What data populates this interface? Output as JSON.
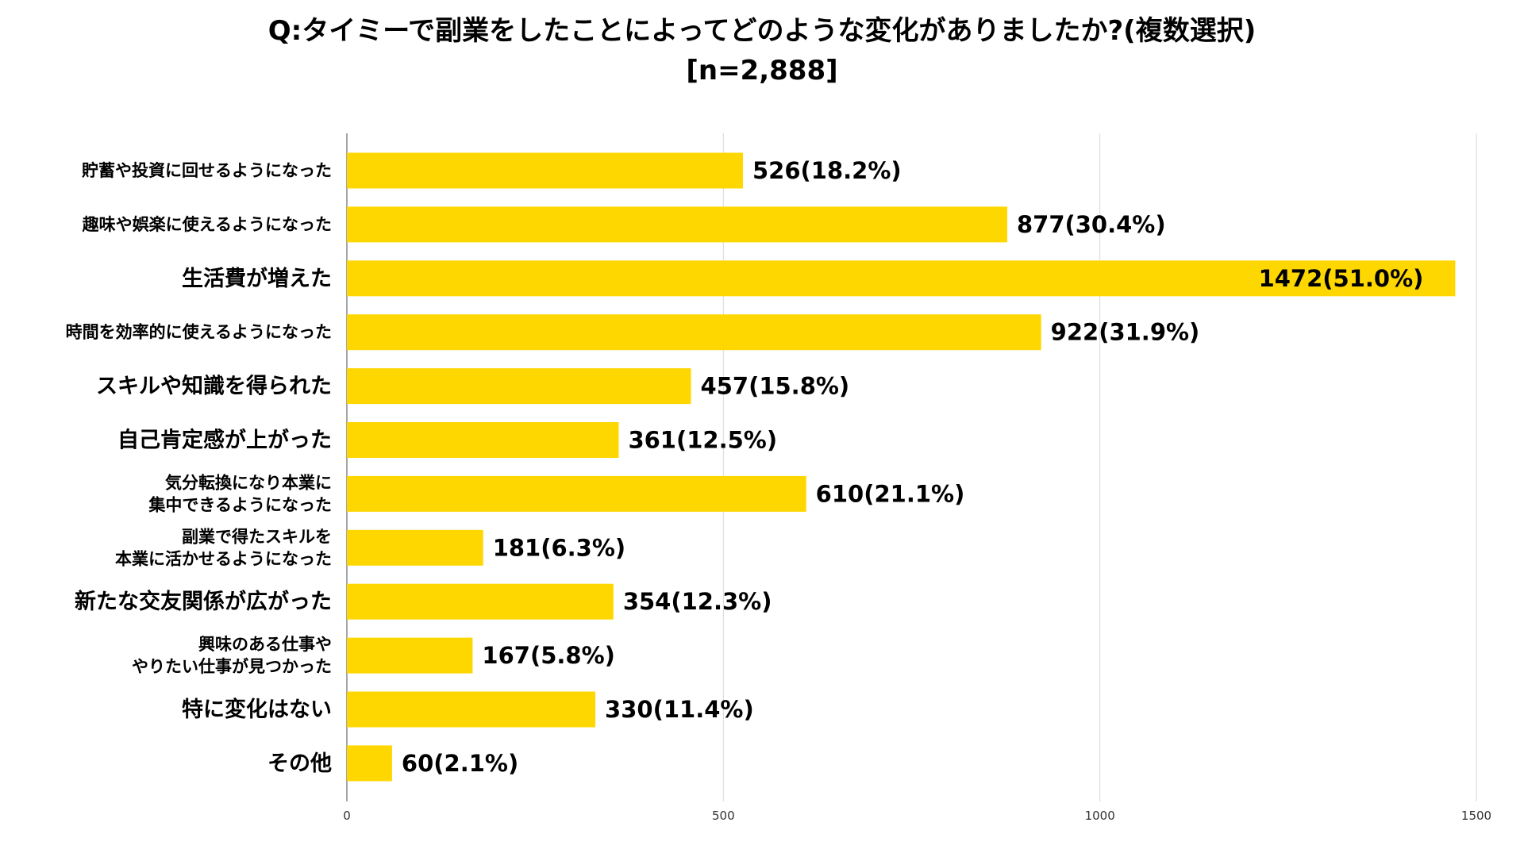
{
  "chart_data": {
    "type": "bar",
    "orientation": "horizontal",
    "title": "Q:タイミーで副業をしたことによってどのような変化がありましたか?(複数選択)",
    "subtitle": "[n=2,888]",
    "categories": [
      "貯蓄や投資に回せるようになった",
      "趣味や娯楽に使えるようになった",
      "生活費が増えた",
      "時間を効率的に使えるようになった",
      "スキルや知識を得られた",
      "自己肯定感が上がった",
      "気分転換になり本業に集中できるようになった",
      "副業で得たスキルを本業に活かせるようになった",
      "新たな交友関係が広がった",
      "興味のある仕事ややりたい仕事が見つかった",
      "特に変化はない",
      "その他"
    ],
    "category_lines": [
      [
        "貯蓄や投資に回せるようになった"
      ],
      [
        "趣味や娯楽に使えるようになった"
      ],
      [
        "生活費が増えた"
      ],
      [
        "時間を効率的に使えるようになった"
      ],
      [
        "スキルや知識を得られた"
      ],
      [
        "自己肯定感が上がった"
      ],
      [
        "気分転換になり本業に",
        "集中できるようになった"
      ],
      [
        "副業で得たスキルを",
        "本業に活かせるようになった"
      ],
      [
        "新たな交友関係が広がった"
      ],
      [
        "興味のある仕事や",
        "やりたい仕事が見つかった"
      ],
      [
        "特に変化はない"
      ],
      [
        "その他"
      ]
    ],
    "values": [
      526,
      877,
      1472,
      922,
      457,
      361,
      610,
      181,
      354,
      167,
      330,
      60
    ],
    "percents": [
      "18.2%",
      "30.4%",
      "51.0%",
      "31.9%",
      "15.8%",
      "12.5%",
      "21.1%",
      "6.3%",
      "12.3%",
      "5.8%",
      "11.4%",
      "2.1%"
    ],
    "data_labels": [
      "526(18.2%)",
      "877(30.4%)",
      "1472(51.0%)",
      "922(31.9%)",
      "457(15.8%)",
      "361(12.5%)",
      "610(21.1%)",
      "181(6.3%)",
      "354(12.3%)",
      "167(5.8%)",
      "330(11.4%)",
      "60(2.1%)"
    ],
    "xlim": [
      0,
      1500
    ],
    "xticks": [
      0,
      500,
      1000,
      1500
    ],
    "grid": true,
    "bar_color": "#FFD700",
    "grid_color": "#d9d9d9",
    "axis_color": "#888888",
    "xlabel": "",
    "ylabel": ""
  }
}
